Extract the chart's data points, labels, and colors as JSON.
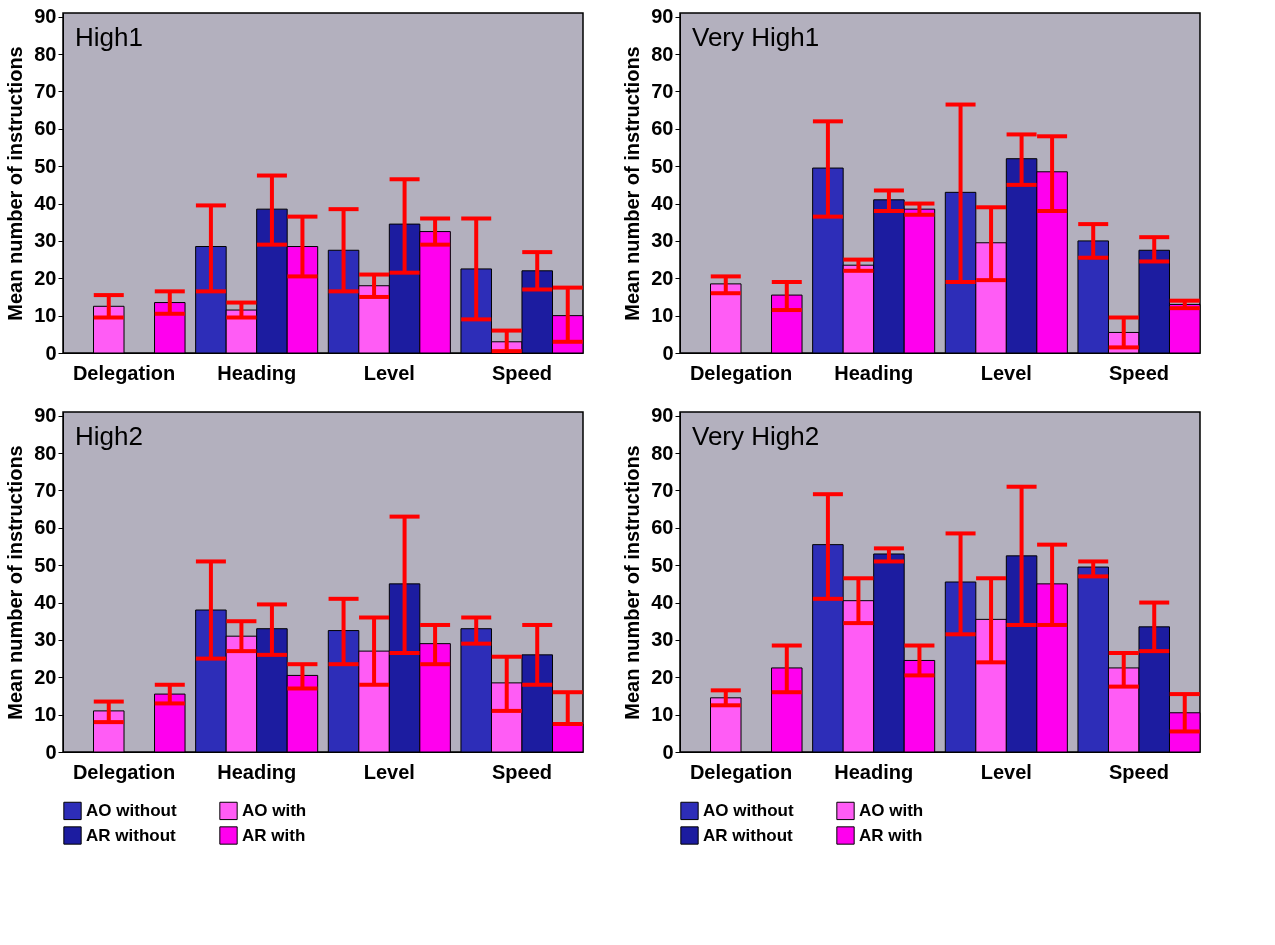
{
  "chart_data": [
    {
      "type": "bar",
      "title": "High1",
      "ylabel": "Mean number of instructions",
      "categories": [
        "Delegation",
        "Heading",
        "Level",
        "Speed"
      ],
      "ylim": [
        0,
        91
      ],
      "yticks": [
        0,
        10,
        20,
        30,
        40,
        50,
        60,
        70,
        80,
        90
      ],
      "grid": false,
      "legend": "bottom",
      "series": [
        {
          "name": "AO without",
          "color": "#2d2db8",
          "values": [
            null,
            28.5,
            27.5,
            22.5
          ],
          "errors": [
            null,
            [
              16.5,
              39.5
            ],
            [
              16.5,
              38.5
            ],
            [
              9,
              36
            ]
          ]
        },
        {
          "name": "AO with",
          "color": "#ff5cf5",
          "values": [
            12.5,
            11.5,
            18,
            3
          ],
          "errors": [
            [
              9.5,
              15.5
            ],
            [
              9.5,
              13.5
            ],
            [
              15,
              21
            ],
            [
              0.5,
              6
            ]
          ]
        },
        {
          "name": "AR without",
          "color": "#1c1ca0",
          "values": [
            null,
            38.5,
            34.5,
            22
          ],
          "errors": [
            null,
            [
              29,
              47.5
            ],
            [
              21.5,
              46.5
            ],
            [
              17,
              27
            ]
          ]
        },
        {
          "name": "AR with",
          "color": "#ff00ee",
          "values": [
            13.5,
            28.5,
            32.5,
            10
          ],
          "errors": [
            [
              10.5,
              16.5
            ],
            [
              20.5,
              36.5
            ],
            [
              29,
              36
            ],
            [
              3,
              17.5
            ]
          ]
        }
      ]
    },
    {
      "type": "bar",
      "title": "Very High1",
      "ylabel": "Mean number of instructions",
      "categories": [
        "Delegation",
        "Heading",
        "Level",
        "Speed"
      ],
      "ylim": [
        0,
        91
      ],
      "yticks": [
        0,
        10,
        20,
        30,
        40,
        50,
        60,
        70,
        80,
        90
      ],
      "grid": false,
      "legend": "bottom",
      "series": [
        {
          "name": "AO without",
          "color": "#2d2db8",
          "values": [
            null,
            49.5,
            43,
            30
          ],
          "errors": [
            null,
            [
              36.5,
              62
            ],
            [
              19,
              66.5
            ],
            [
              25.5,
              34.5
            ]
          ]
        },
        {
          "name": "AO with",
          "color": "#ff5cf5",
          "values": [
            18.5,
            23.5,
            29.5,
            5.5
          ],
          "errors": [
            [
              16,
              20.5
            ],
            [
              22,
              25
            ],
            [
              19.5,
              39
            ],
            [
              1.5,
              9.5
            ]
          ]
        },
        {
          "name": "AR without",
          "color": "#1c1ca0",
          "values": [
            null,
            41,
            52,
            27.5
          ],
          "errors": [
            null,
            [
              38,
              43.5
            ],
            [
              45,
              58.5
            ],
            [
              24.5,
              31
            ]
          ]
        },
        {
          "name": "AR with",
          "color": "#ff00ee",
          "values": [
            15.5,
            38.5,
            48.5,
            13
          ],
          "errors": [
            [
              11.5,
              19
            ],
            [
              37,
              40
            ],
            [
              38,
              58
            ],
            [
              12,
              14
            ]
          ]
        }
      ]
    },
    {
      "type": "bar",
      "title": "High2",
      "ylabel": "Mean number of instructions",
      "categories": [
        "Delegation",
        "Heading",
        "Level",
        "Speed"
      ],
      "ylim": [
        0,
        91
      ],
      "yticks": [
        0,
        10,
        20,
        30,
        40,
        50,
        60,
        70,
        80,
        90
      ],
      "grid": false,
      "legend": "bottom",
      "series": [
        {
          "name": "AO without",
          "color": "#2d2db8",
          "values": [
            null,
            38,
            32.5,
            33
          ],
          "errors": [
            null,
            [
              25,
              51
            ],
            [
              23.5,
              41
            ],
            [
              29,
              36
            ]
          ]
        },
        {
          "name": "AO with",
          "color": "#ff5cf5",
          "values": [
            11,
            31,
            27,
            18.5
          ],
          "errors": [
            [
              8,
              13.5
            ],
            [
              27,
              35
            ],
            [
              18,
              36
            ],
            [
              11,
              25.5
            ]
          ]
        },
        {
          "name": "AR without",
          "color": "#1c1ca0",
          "values": [
            null,
            33,
            45,
            26
          ],
          "errors": [
            null,
            [
              26,
              39.5
            ],
            [
              26.5,
              63
            ],
            [
              18,
              34
            ]
          ]
        },
        {
          "name": "AR with",
          "color": "#ff00ee",
          "values": [
            15.5,
            20.5,
            29,
            7.5
          ],
          "errors": [
            [
              13,
              18
            ],
            [
              17,
              23.5
            ],
            [
              23.5,
              34
            ],
            [
              7.5,
              16
            ]
          ]
        }
      ]
    },
    {
      "type": "bar",
      "title": "Very High2",
      "ylabel": "Mean number of instructions",
      "categories": [
        "Delegation",
        "Heading",
        "Level",
        "Speed"
      ],
      "ylim": [
        0,
        91
      ],
      "yticks": [
        0,
        10,
        20,
        30,
        40,
        50,
        60,
        70,
        80,
        90
      ],
      "grid": false,
      "legend": "bottom",
      "series": [
        {
          "name": "AO without",
          "color": "#2d2db8",
          "values": [
            null,
            55.5,
            45.5,
            49.5
          ],
          "errors": [
            null,
            [
              41,
              69
            ],
            [
              31.5,
              58.5
            ],
            [
              47,
              51
            ]
          ]
        },
        {
          "name": "AO with",
          "color": "#ff5cf5",
          "values": [
            14.5,
            40.5,
            35.5,
            22.5
          ],
          "errors": [
            [
              12.5,
              16.5
            ],
            [
              34.5,
              46.5
            ],
            [
              24,
              46.5
            ],
            [
              17.5,
              26.5
            ]
          ]
        },
        {
          "name": "AR without",
          "color": "#1c1ca0",
          "values": [
            null,
            53,
            52.5,
            33.5
          ],
          "errors": [
            null,
            [
              51,
              54.5
            ],
            [
              34,
              71
            ],
            [
              27,
              40
            ]
          ]
        },
        {
          "name": "AR with",
          "color": "#ff00ee",
          "values": [
            22.5,
            24.5,
            45,
            10.5
          ],
          "errors": [
            [
              16,
              28.5
            ],
            [
              20.5,
              28.5
            ],
            [
              34,
              55.5
            ],
            [
              5.5,
              15.5
            ]
          ]
        }
      ]
    }
  ]
}
